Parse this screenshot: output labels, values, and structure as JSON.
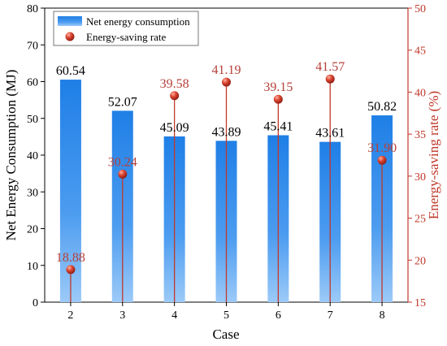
{
  "chart_data": {
    "type": "bar",
    "categories": [
      "2",
      "3",
      "4",
      "5",
      "6",
      "7",
      "8"
    ],
    "series": [
      {
        "name": "Net energy consumption",
        "kind": "bar",
        "axis": "left",
        "values": [
          60.54,
          52.07,
          45.09,
          43.89,
          45.41,
          43.61,
          50.82
        ],
        "labels": [
          "60.54",
          "52.07",
          "45.09",
          "43.89",
          "45.41",
          "43.61",
          "50.82"
        ]
      },
      {
        "name": "Energy-saving rate",
        "kind": "lollipop",
        "axis": "right",
        "values": [
          18.88,
          30.24,
          39.58,
          41.19,
          39.15,
          41.57,
          31.9
        ],
        "labels": [
          "18.88",
          "30.24",
          "39.58",
          "41.19",
          "39.15",
          "41.57",
          "31.90"
        ]
      }
    ],
    "xlabel": "Case",
    "ylabel": "Net Energy Consumption (MJ)",
    "y2label": "Energy-saving rate (%)",
    "ylim": [
      0,
      80
    ],
    "yticks": [
      0,
      10,
      20,
      30,
      40,
      50,
      60,
      70,
      80
    ],
    "ytick_labels": [
      "0",
      "10",
      "20",
      "30",
      "40",
      "50",
      "60",
      "70",
      "80"
    ],
    "y2lim": [
      15,
      50
    ],
    "y2ticks": [
      15,
      20,
      25,
      30,
      35,
      40,
      45,
      50
    ],
    "y2tick_labels": [
      "15",
      "20",
      "25",
      "30",
      "35",
      "40",
      "45",
      "50"
    ],
    "legend_position": "top-left",
    "grid": false,
    "colors": {
      "bar": "#2a86e6",
      "rate": "#c0392b",
      "right_axis": "#c0392b"
    }
  }
}
